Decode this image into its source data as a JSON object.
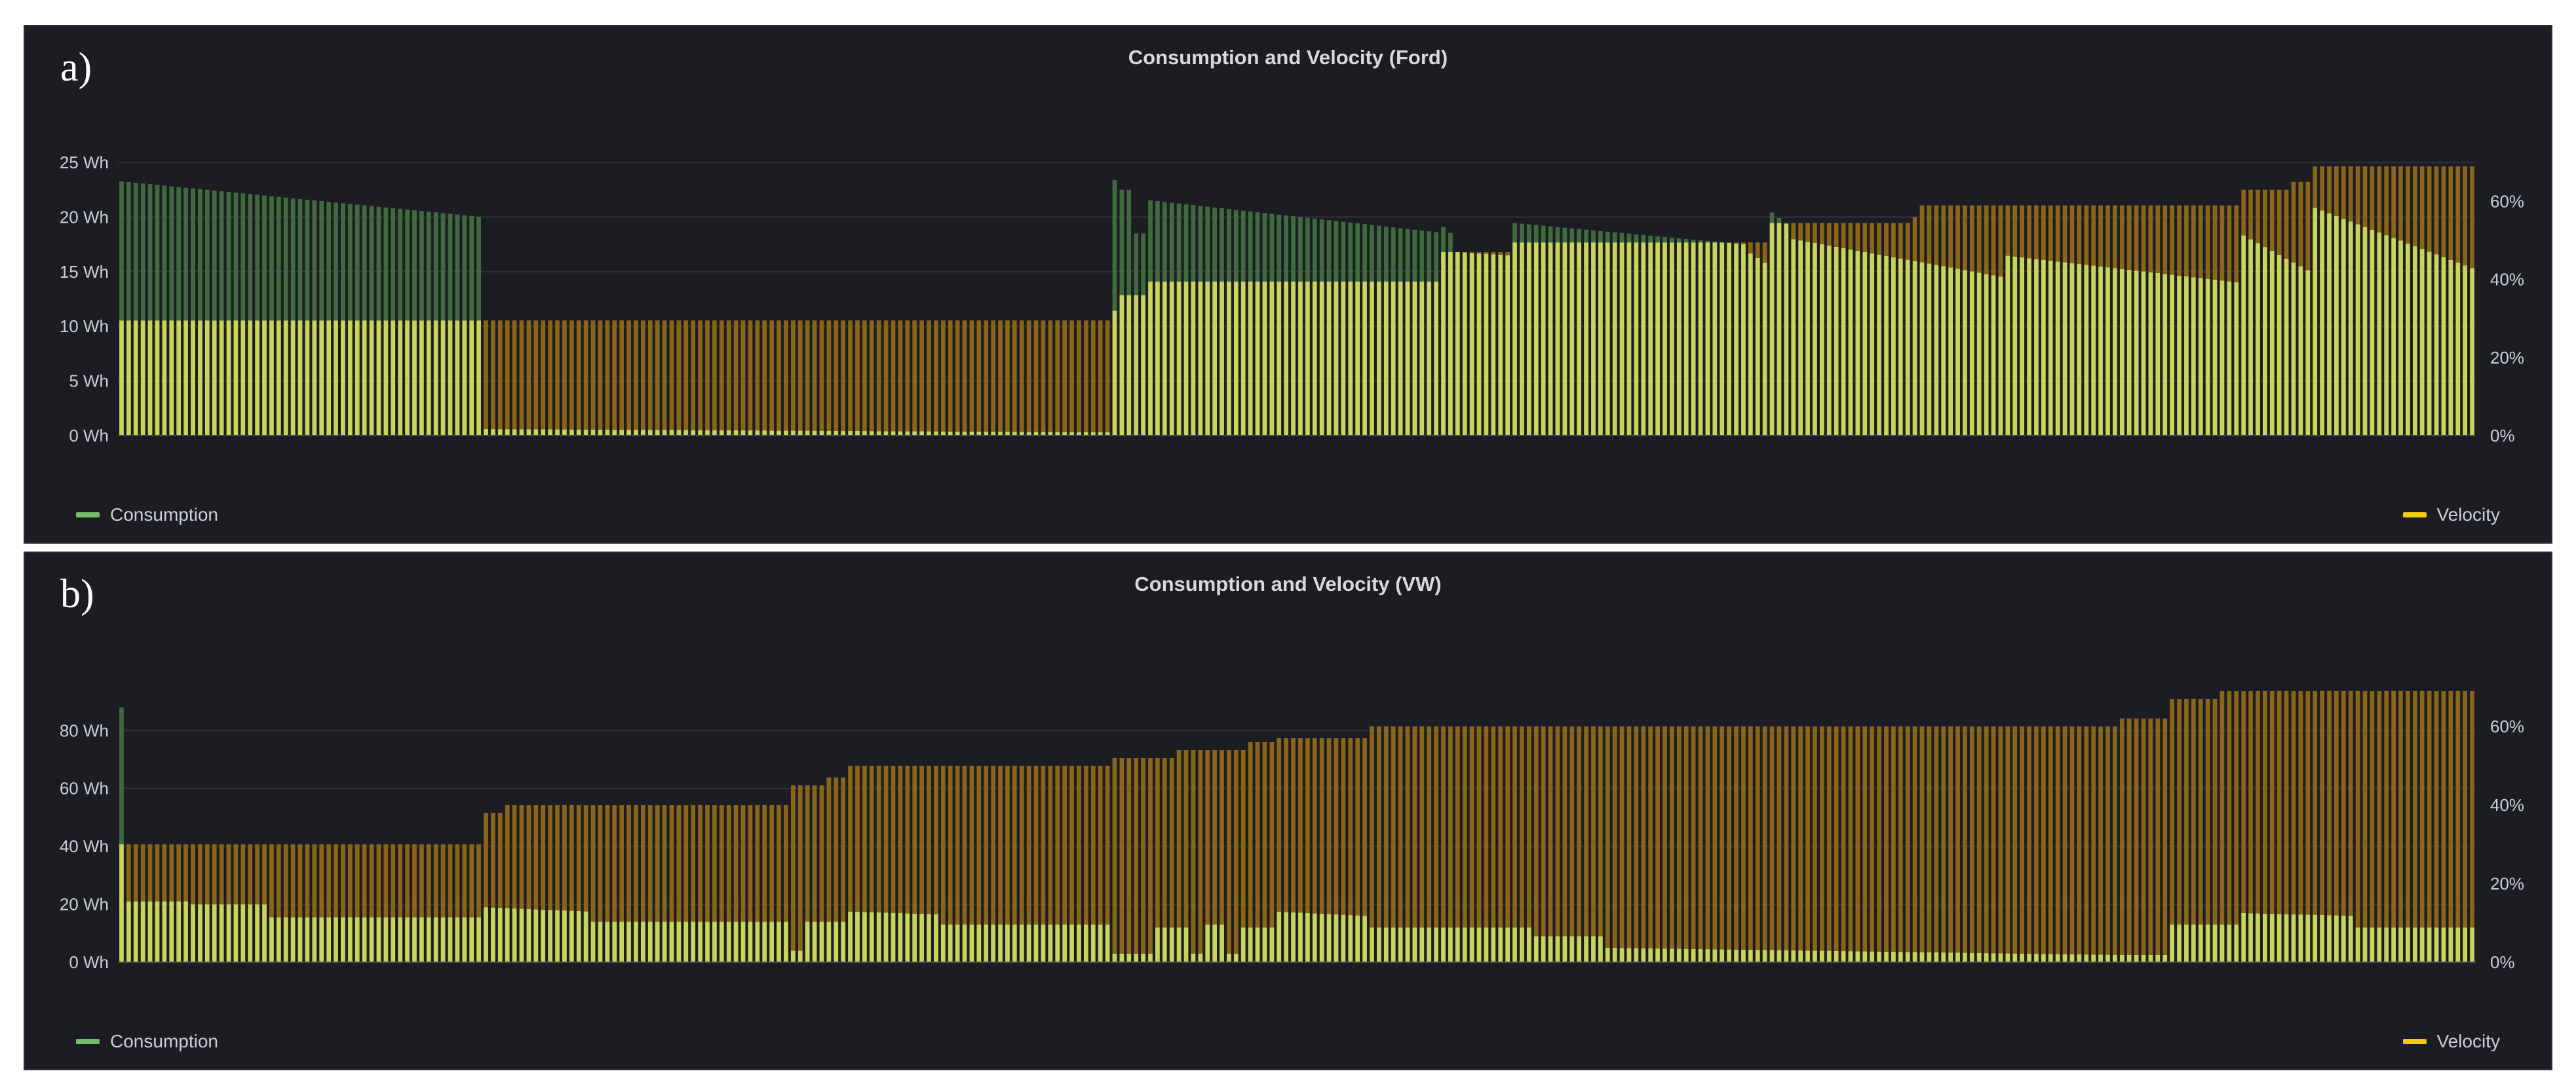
{
  "colors": {
    "consumption": "#73bf69",
    "consumption_dark": "#3f6a3e",
    "velocity": "#d9b024",
    "velocity_dark": "#8a6418",
    "overlap": "#c8d55a",
    "grid": "#2f3137",
    "axis_text": "#c7d0d9",
    "panel_bg": "#1c1d22"
  },
  "chart_data": [
    {
      "type": "bar",
      "panel_label": "a)",
      "title": "Consumption and Velocity (Ford)",
      "left_axis": {
        "unit": "Wh",
        "ylim": [
          0,
          25
        ],
        "ticks": [
          0,
          5,
          10,
          15,
          20,
          25
        ],
        "tick_labels": [
          "0 Wh",
          "5 Wh",
          "10 Wh",
          "15 Wh",
          "20 Wh",
          "25 Wh"
        ]
      },
      "right_axis": {
        "unit": "%",
        "ylim": [
          0,
          70
        ],
        "ticks": [
          0,
          20,
          40,
          60
        ],
        "tick_labels": [
          "0%",
          "20%",
          "40%",
          "60%"
        ]
      },
      "grid": true,
      "legend": {
        "left": "Consumption",
        "right": "Velocity"
      },
      "bar_count": 330,
      "series": [
        {
          "name": "Consumption",
          "axis": "left",
          "segments": [
            {
              "from": 0.0,
              "to": 0.155,
              "start": 23.3,
              "end": 20.0
            },
            {
              "from": 0.155,
              "to": 0.42,
              "start": 0.6,
              "end": 0.3
            },
            {
              "from": 0.42,
              "to": 0.425,
              "start": 23.4,
              "end": 23.4
            },
            {
              "from": 0.425,
              "to": 0.43,
              "start": 22.5,
              "end": 22.5
            },
            {
              "from": 0.43,
              "to": 0.435,
              "start": 18.5,
              "end": 18.5
            },
            {
              "from": 0.435,
              "to": 0.56,
              "start": 21.6,
              "end": 18.6
            },
            {
              "from": 0.56,
              "to": 0.568,
              "start": 19.5,
              "end": 18.0
            },
            {
              "from": 0.568,
              "to": 0.59,
              "start": 16.8,
              "end": 16.5
            },
            {
              "from": 0.59,
              "to": 0.69,
              "start": 19.5,
              "end": 17.5
            },
            {
              "from": 0.69,
              "to": 0.701,
              "start": 17.0,
              "end": 15.5
            },
            {
              "from": 0.701,
              "to": 0.71,
              "start": 20.5,
              "end": 19.0
            },
            {
              "from": 0.71,
              "to": 0.8,
              "start": 18.0,
              "end": 14.5
            },
            {
              "from": 0.8,
              "to": 0.9,
              "start": 16.5,
              "end": 14.0
            },
            {
              "from": 0.9,
              "to": 0.93,
              "start": 18.5,
              "end": 15.0
            },
            {
              "from": 0.93,
              "to": 1.0,
              "start": 21.0,
              "end": 15.2
            }
          ]
        },
        {
          "name": "Velocity",
          "axis": "right",
          "segments": [
            {
              "from": 0.0,
              "to": 0.42,
              "start": 29.5,
              "end": 29.5
            },
            {
              "from": 0.42,
              "to": 0.425,
              "start": 32,
              "end": 32
            },
            {
              "from": 0.425,
              "to": 0.435,
              "start": 36,
              "end": 36
            },
            {
              "from": 0.435,
              "to": 0.56,
              "start": 39.5,
              "end": 39.5
            },
            {
              "from": 0.56,
              "to": 0.59,
              "start": 47,
              "end": 47
            },
            {
              "from": 0.59,
              "to": 0.7,
              "start": 49.5,
              "end": 49.5
            },
            {
              "from": 0.7,
              "to": 0.76,
              "start": 54.5,
              "end": 54.5
            },
            {
              "from": 0.76,
              "to": 0.765,
              "start": 56,
              "end": 56
            },
            {
              "from": 0.765,
              "to": 0.9,
              "start": 59,
              "end": 59
            },
            {
              "from": 0.9,
              "to": 0.92,
              "start": 63,
              "end": 63
            },
            {
              "from": 0.92,
              "to": 0.93,
              "start": 65,
              "end": 65
            },
            {
              "from": 0.93,
              "to": 1.0,
              "start": 69,
              "end": 69
            }
          ]
        }
      ]
    },
    {
      "type": "bar",
      "panel_label": "b)",
      "title": "Consumption and Velocity (VW)",
      "left_axis": {
        "unit": "Wh",
        "ylim": [
          0,
          95
        ],
        "ticks": [
          0,
          20,
          40,
          60,
          80
        ],
        "tick_labels": [
          "0 Wh",
          "20 Wh",
          "40 Wh",
          "60 Wh",
          "80 Wh"
        ]
      },
      "right_axis": {
        "unit": "%",
        "ylim": [
          0,
          70
        ],
        "ticks": [
          0,
          20,
          40,
          60
        ],
        "tick_labels": [
          "0%",
          "20%",
          "40%",
          "60%"
        ]
      },
      "grid": true,
      "legend": {
        "left": "Consumption",
        "right": "Velocity"
      },
      "bar_count": 330,
      "series": [
        {
          "name": "Consumption",
          "axis": "left",
          "segments": [
            {
              "from": 0.0,
              "to": 0.002,
              "start": 88,
              "end": 88
            },
            {
              "from": 0.002,
              "to": 0.004,
              "start": 62,
              "end": 62
            },
            {
              "from": 0.004,
              "to": 0.03,
              "start": 21,
              "end": 21
            },
            {
              "from": 0.03,
              "to": 0.065,
              "start": 20,
              "end": 20
            },
            {
              "from": 0.065,
              "to": 0.155,
              "start": 15.5,
              "end": 15.5
            },
            {
              "from": 0.155,
              "to": 0.2,
              "start": 19,
              "end": 17.5
            },
            {
              "from": 0.2,
              "to": 0.285,
              "start": 14,
              "end": 14
            },
            {
              "from": 0.285,
              "to": 0.29,
              "start": 4,
              "end": 4
            },
            {
              "from": 0.29,
              "to": 0.31,
              "start": 14,
              "end": 14
            },
            {
              "from": 0.31,
              "to": 0.35,
              "start": 17.5,
              "end": 16.5
            },
            {
              "from": 0.35,
              "to": 0.42,
              "start": 13,
              "end": 13
            },
            {
              "from": 0.42,
              "to": 0.44,
              "start": 3,
              "end": 3
            },
            {
              "from": 0.44,
              "to": 0.455,
              "start": 12,
              "end": 12
            },
            {
              "from": 0.455,
              "to": 0.46,
              "start": 3,
              "end": 3
            },
            {
              "from": 0.46,
              "to": 0.47,
              "start": 13,
              "end": 13
            },
            {
              "from": 0.47,
              "to": 0.475,
              "start": 3,
              "end": 3
            },
            {
              "from": 0.475,
              "to": 0.49,
              "start": 12,
              "end": 12
            },
            {
              "from": 0.49,
              "to": 0.53,
              "start": 17.5,
              "end": 16
            },
            {
              "from": 0.53,
              "to": 0.6,
              "start": 12,
              "end": 12
            },
            {
              "from": 0.6,
              "to": 0.63,
              "start": 9,
              "end": 9
            },
            {
              "from": 0.63,
              "to": 0.85,
              "start": 5,
              "end": 2.5
            },
            {
              "from": 0.85,
              "to": 0.87,
              "start": 2.5,
              "end": 2.5
            },
            {
              "from": 0.87,
              "to": 0.9,
              "start": 13,
              "end": 13
            },
            {
              "from": 0.9,
              "to": 0.95,
              "start": 17,
              "end": 16
            },
            {
              "from": 0.95,
              "to": 1.0,
              "start": 12,
              "end": 12
            }
          ]
        },
        {
          "name": "Velocity",
          "axis": "right",
          "segments": [
            {
              "from": 0.0,
              "to": 0.155,
              "start": 30,
              "end": 30
            },
            {
              "from": 0.155,
              "to": 0.165,
              "start": 38,
              "end": 38
            },
            {
              "from": 0.165,
              "to": 0.285,
              "start": 40,
              "end": 40
            },
            {
              "from": 0.285,
              "to": 0.3,
              "start": 45,
              "end": 45
            },
            {
              "from": 0.3,
              "to": 0.31,
              "start": 47,
              "end": 47
            },
            {
              "from": 0.31,
              "to": 0.42,
              "start": 50,
              "end": 50
            },
            {
              "from": 0.42,
              "to": 0.45,
              "start": 52,
              "end": 52
            },
            {
              "from": 0.45,
              "to": 0.48,
              "start": 54,
              "end": 54
            },
            {
              "from": 0.48,
              "to": 0.49,
              "start": 56,
              "end": 56
            },
            {
              "from": 0.49,
              "to": 0.53,
              "start": 57,
              "end": 57
            },
            {
              "from": 0.53,
              "to": 0.85,
              "start": 60,
              "end": 60
            },
            {
              "from": 0.85,
              "to": 0.87,
              "start": 62,
              "end": 62
            },
            {
              "from": 0.87,
              "to": 0.89,
              "start": 67,
              "end": 67
            },
            {
              "from": 0.89,
              "to": 1.0,
              "start": 69,
              "end": 69
            }
          ]
        }
      ]
    }
  ]
}
